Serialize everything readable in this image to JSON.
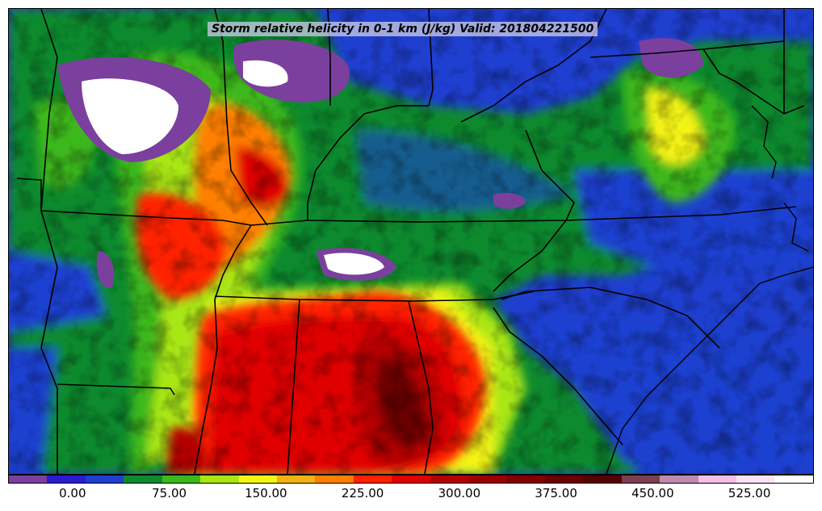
{
  "title": "Storm relative helicity in 0-1 km (J/kg) Valid: 201804221500",
  "colorbar": {
    "colors": [
      "#7b3f9e",
      "#2a1ad0",
      "#1f3fd0",
      "#0f8a2e",
      "#3cb81d",
      "#a8e614",
      "#f3f315",
      "#f2b013",
      "#ff7f00",
      "#ff2000",
      "#e00000",
      "#b40000",
      "#9a0000",
      "#820000",
      "#6a0000",
      "#560000",
      "#7a4050",
      "#c08ab0",
      "#f0c0ea",
      "#fbe2f8",
      "#ffffff"
    ],
    "tick_labels": [
      "0.00",
      "75.00",
      "150.00",
      "225.00",
      "300.00",
      "375.00",
      "450.00",
      "525.00"
    ],
    "tick_values": [
      0,
      75,
      150,
      225,
      300,
      375,
      450,
      525
    ],
    "range": [
      -50,
      575
    ]
  },
  "map": {
    "field": "Storm relative helicity in 0-1 km",
    "units": "J/kg",
    "valid": "201804221500"
  }
}
